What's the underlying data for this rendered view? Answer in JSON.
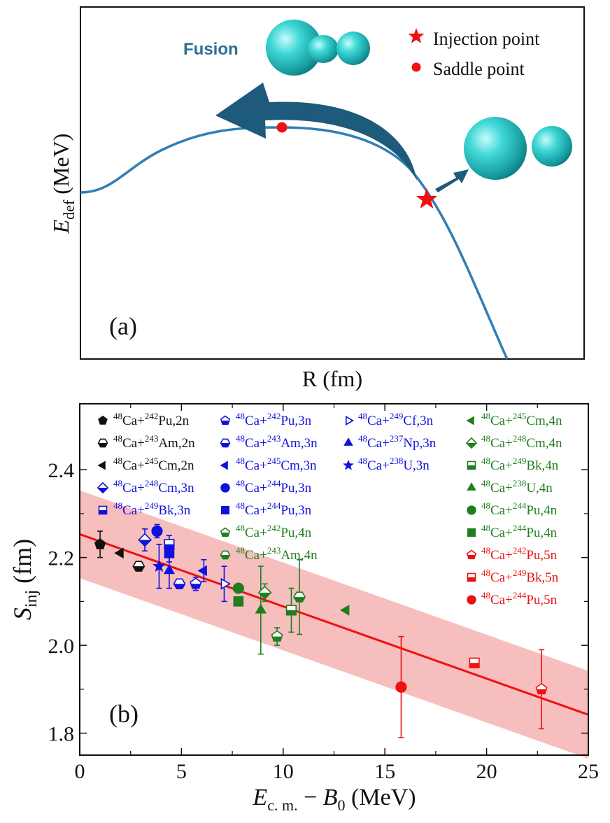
{
  "colors": {
    "curve": "#2f7fb6",
    "arrow": "#1d5a7c",
    "fusion_text": "#2a6f94",
    "red": "#ee1111",
    "black": "#111111",
    "blue": "#1111dd",
    "green": "#1f7f1f",
    "band": "#f6b7b7",
    "fit": "#ee1111"
  },
  "panel_a": {
    "label": "(a)",
    "fusion_label": "Fusion",
    "xlabel": "R (fm)",
    "ylabel_main": "E",
    "ylabel_sub": "def",
    "ylabel_unit": " (MeV)",
    "legend": [
      {
        "label": "Injection point",
        "marker": "star-icon"
      },
      {
        "label": "Saddle point",
        "marker": "dot-icon"
      }
    ]
  },
  "chart_data": {
    "type": "scatter",
    "panel_label": "(b)",
    "xlabel_parts": {
      "e": "E",
      "sub1": "c. m.",
      "minus": " − ",
      "b": "B",
      "sub2": "0",
      "unit": " (MeV)"
    },
    "ylabel_parts": {
      "s": "S",
      "sub": "inj",
      "unit": " (fm)"
    },
    "xlim": [
      0,
      25
    ],
    "ylim": [
      1.75,
      2.55
    ],
    "xticks": [
      0,
      5,
      10,
      15,
      20,
      25
    ],
    "yticks": [
      1.8,
      2.0,
      2.2,
      2.4
    ],
    "ytick_labels": [
      "1.8",
      "2.0",
      "2.2",
      "2.4"
    ],
    "fit_line": {
      "x": [
        0,
        25
      ],
      "y": [
        2.253,
        1.842
      ]
    },
    "band": {
      "upper": [
        2.353,
        1.942
      ],
      "lower": [
        2.153,
        1.742
      ]
    },
    "series": [
      {
        "name": "48Ca+242Pu,2n",
        "pre": "48",
        "el": "Ca+",
        "tpre": "242",
        "tel": "Pu,2n",
        "color": "black",
        "marker": "pentagon-filled",
        "x": 1.0,
        "y": 2.23,
        "err": 0.03
      },
      {
        "name": "48Ca+243Am,2n",
        "pre": "48",
        "el": "Ca+",
        "tpre": "243",
        "tel": "Am,2n",
        "color": "black",
        "marker": "hexagon-half",
        "x": 2.9,
        "y": 2.18,
        "err": 0.0
      },
      {
        "name": "48Ca+245Cm,2n",
        "pre": "48",
        "el": "Ca+",
        "tpre": "245",
        "tel": "Cm,2n",
        "color": "black",
        "marker": "triangle-left-filled",
        "x": 2.0,
        "y": 2.21,
        "err": 0.0
      },
      {
        "name": "48Ca+242Pu,3n",
        "pre": "48",
        "el": "Ca+",
        "tpre": "242",
        "tel": "Pu,3n",
        "color": "blue",
        "marker": "pentagon-half",
        "x": 5.7,
        "y": 2.14,
        "err": 0.015
      },
      {
        "name": "48Ca+243Am,3n",
        "pre": "48",
        "el": "Ca+",
        "tpre": "243",
        "tel": "Am,3n",
        "color": "blue",
        "marker": "hexagon-half",
        "x": 4.9,
        "y": 2.14,
        "err": 0.0
      },
      {
        "name": "48Ca+245Cm,3n",
        "pre": "48",
        "el": "Ca+",
        "tpre": "245",
        "tel": "Cm,3n",
        "color": "blue",
        "marker": "triangle-left-filled",
        "x": 6.1,
        "y": 2.17,
        "err": 0.025
      },
      {
        "name": "48Ca+248Cm,3n",
        "pre": "48",
        "el": "Ca+",
        "tpre": "248",
        "tel": "Cm,3n",
        "color": "blue",
        "marker": "diamond-half",
        "x": 3.2,
        "y": 2.24,
        "err": 0.025
      },
      {
        "name": "48Ca+249Bk,3n",
        "pre": "48",
        "el": "Ca+",
        "tpre": "249",
        "tel": "Bk,3n",
        "color": "blue",
        "marker": "square-half",
        "x": 4.4,
        "y": 2.23,
        "err": 0.02
      },
      {
        "name": "48Ca+249Cf,3n",
        "pre": "48",
        "el": "Ca+",
        "tpre": "249",
        "tel": "Cf,3n",
        "color": "blue",
        "marker": "triangle-right-open",
        "x": 7.1,
        "y": 2.14,
        "err": 0.04
      },
      {
        "name": "48Ca+237Np,3n",
        "pre": "48",
        "el": "Ca+",
        "tpre": "237",
        "tel": "Np,3n",
        "color": "blue",
        "marker": "triangle-up-filled",
        "x": 4.4,
        "y": 2.17,
        "err": 0.04
      },
      {
        "name": "48Ca+238U,3n",
        "pre": "48",
        "el": "Ca+",
        "tpre": "238",
        "tel": "U,3n",
        "color": "blue",
        "marker": "star-filled",
        "x": 3.9,
        "y": 2.18,
        "err": 0.05
      },
      {
        "name": "48Ca+244Pu,3n",
        "pre": "48",
        "el": "Ca+",
        "tpre": "244",
        "tel": "Pu,3n",
        "color": "blue",
        "marker": "circle-filled",
        "x": 3.8,
        "y": 2.26,
        "err": 0.015
      },
      {
        "name": "48Ca+244Pu,3n",
        "pre": "48",
        "el": "Ca+",
        "tpre": "244",
        "tel": "Pu,3n",
        "color": "blue",
        "marker": "square-filled",
        "x": 4.4,
        "y": 2.21,
        "err": 0.02
      },
      {
        "name": "48Ca+242Pu,4n",
        "pre": "48",
        "el": "Ca+",
        "tpre": "242",
        "tel": "Pu,4n",
        "color": "green",
        "marker": "pentagon-half",
        "x": 9.7,
        "y": 2.02,
        "err": 0.02
      },
      {
        "name": "48Ca+243Am,4n",
        "pre": "48",
        "el": "Ca+",
        "tpre": "243",
        "tel": "Am,4n",
        "color": "green",
        "marker": "hexagon-half",
        "x": 10.8,
        "y": 2.11,
        "err": 0.085
      },
      {
        "name": "48Ca+245Cm,4n",
        "pre": "48",
        "el": "Ca+",
        "tpre": "245",
        "tel": "Cm,4n",
        "color": "green",
        "marker": "triangle-left-filled",
        "x": 13.1,
        "y": 2.08,
        "err": 0.0
      },
      {
        "name": "48Ca+248Cm,4n",
        "pre": "48",
        "el": "Ca+",
        "tpre": "248",
        "tel": "Cm,4n",
        "color": "green",
        "marker": "diamond-half",
        "x": 9.1,
        "y": 2.12,
        "err": 0.02
      },
      {
        "name": "48Ca+249Bk,4n",
        "pre": "48",
        "el": "Ca+",
        "tpre": "249",
        "tel": "Bk,4n",
        "color": "green",
        "marker": "square-half",
        "x": 10.4,
        "y": 2.08,
        "err": 0.05
      },
      {
        "name": "48Ca+238U,4n",
        "pre": "48",
        "el": "Ca+",
        "tpre": "238",
        "tel": "U,4n",
        "color": "green",
        "marker": "triangle-up-filled",
        "x": 8.9,
        "y": 2.08,
        "err": 0.1
      },
      {
        "name": "48Ca+244Pu,4n",
        "pre": "48",
        "el": "Ca+",
        "tpre": "244",
        "tel": "Pu,4n",
        "color": "green",
        "marker": "circle-filled",
        "x": 7.8,
        "y": 2.13,
        "err": 0.0
      },
      {
        "name": "48Ca+244Pu,4n",
        "pre": "48",
        "el": "Ca+",
        "tpre": "244",
        "tel": "Pu,4n",
        "color": "green",
        "marker": "square-filled",
        "x": 7.8,
        "y": 2.1,
        "err": 0.0
      },
      {
        "name": "48Ca+242Pu,5n",
        "pre": "48",
        "el": "Ca+",
        "tpre": "242",
        "tel": "Pu,5n",
        "color": "red",
        "marker": "pentagon-half",
        "x": 22.7,
        "y": 1.9,
        "err": 0.09
      },
      {
        "name": "48Ca+249Bk,5n",
        "pre": "48",
        "el": "Ca+",
        "tpre": "249",
        "tel": "Bk,5n",
        "color": "red",
        "marker": "square-half",
        "x": 19.4,
        "y": 1.96,
        "err": 0.0
      },
      {
        "name": "48Ca+244Pu,5n",
        "pre": "48",
        "el": "Ca+",
        "tpre": "244",
        "tel": "Pu,5n",
        "color": "red",
        "marker": "circle-filled",
        "x": 15.8,
        "y": 1.905,
        "err": 0.115
      }
    ]
  }
}
